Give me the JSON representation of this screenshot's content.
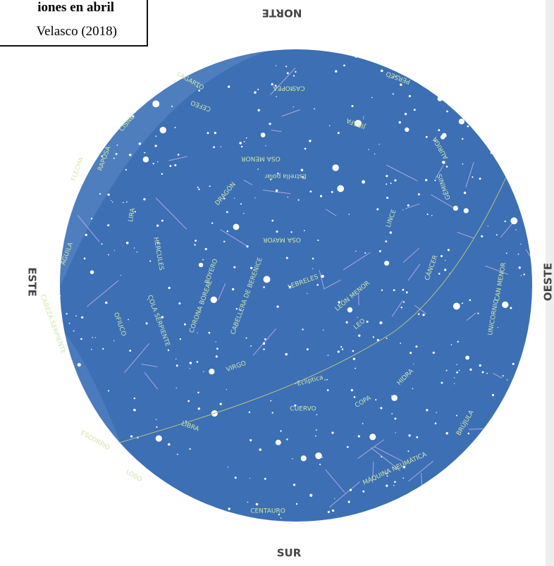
{
  "caption": {
    "title": "iones en abril",
    "source": "Velasco (2018)"
  },
  "directions": {
    "north": "NORTE",
    "south": "SUR",
    "east": "ESTE",
    "west": "OESTE"
  },
  "constellations": [
    "LAGARTO",
    "CASIOPEA",
    "PERSEO",
    "CEFEO",
    "JIRAFA",
    "CISNE",
    "FLECHA",
    "RAPOSA",
    "OSA MENOR",
    "Estrella polar",
    "DRAGÓN",
    "AURIGA",
    "GÉMINIS",
    "LINCE",
    "LIRA",
    "HÉRCULES",
    "OSA MAYOR",
    "ÁGUILA",
    "BOYERO",
    "CABELLERA DE BERENICE",
    "LEBRELES",
    "CÁNCER",
    "CAN MENOR",
    "CORONA BOREAL",
    "LEÓN MENOR",
    "LEO",
    "UNICORNIO",
    "CABEZA SERPIENTE",
    "OFIUCO",
    "COLA SERPIENTE",
    "VIRGO",
    "Eclíptica",
    "HIDRA",
    "CUERVO",
    "COPA",
    "BRÚJULA",
    "LIBRA",
    "ESCORPIO",
    "LOBO",
    "MÁQUINA NEUMÁTICA",
    "CENTAURO"
  ]
}
